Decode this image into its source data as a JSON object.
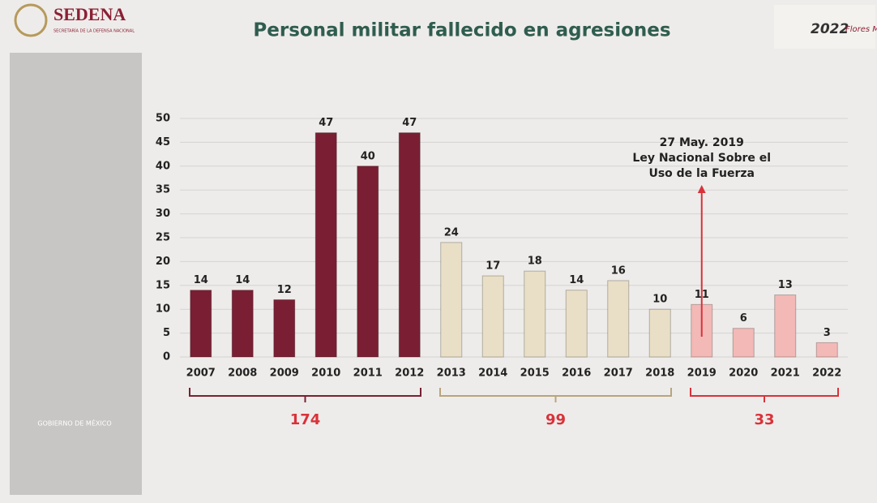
{
  "header": {
    "brand": "SEDENA",
    "brand_subtitle": "SECRETARÍA DE LA DEFENSA NACIONAL",
    "badge_year": "2022",
    "badge_name": "Flores Magón",
    "government": "GOBIERNO DE MÉXICO"
  },
  "chart_data": {
    "type": "bar",
    "title": "Personal militar fallecido en agresiones",
    "ylim": [
      0,
      50
    ],
    "yticks": [
      0,
      5,
      10,
      15,
      20,
      25,
      30,
      35,
      40,
      45,
      50
    ],
    "grid": true,
    "groups": [
      {
        "categories": [
          "2007",
          "2008",
          "2009",
          "2010",
          "2011",
          "2012"
        ],
        "values": [
          14,
          14,
          12,
          47,
          40,
          47
        ],
        "color": "#7a1f33",
        "bracket_color": "#7a1f33",
        "total": 174
      },
      {
        "categories": [
          "2013",
          "2014",
          "2015",
          "2016",
          "2017",
          "2018"
        ],
        "values": [
          24,
          17,
          18,
          14,
          16,
          10
        ],
        "color": "#e9dfc6",
        "bracket_color": "#b8a57c",
        "total": 99
      },
      {
        "categories": [
          "2019",
          "2020",
          "2021",
          "2022"
        ],
        "values": [
          11,
          6,
          13,
          3
        ],
        "color": "#f3b9b6",
        "bracket_color": "#d9323a",
        "total": 33
      }
    ],
    "annotation": {
      "lines": [
        "27 May. 2019",
        "Ley Nacional Sobre el",
        "Uso de la Fuerza"
      ],
      "at": "2019",
      "color": "#d9323a"
    }
  }
}
